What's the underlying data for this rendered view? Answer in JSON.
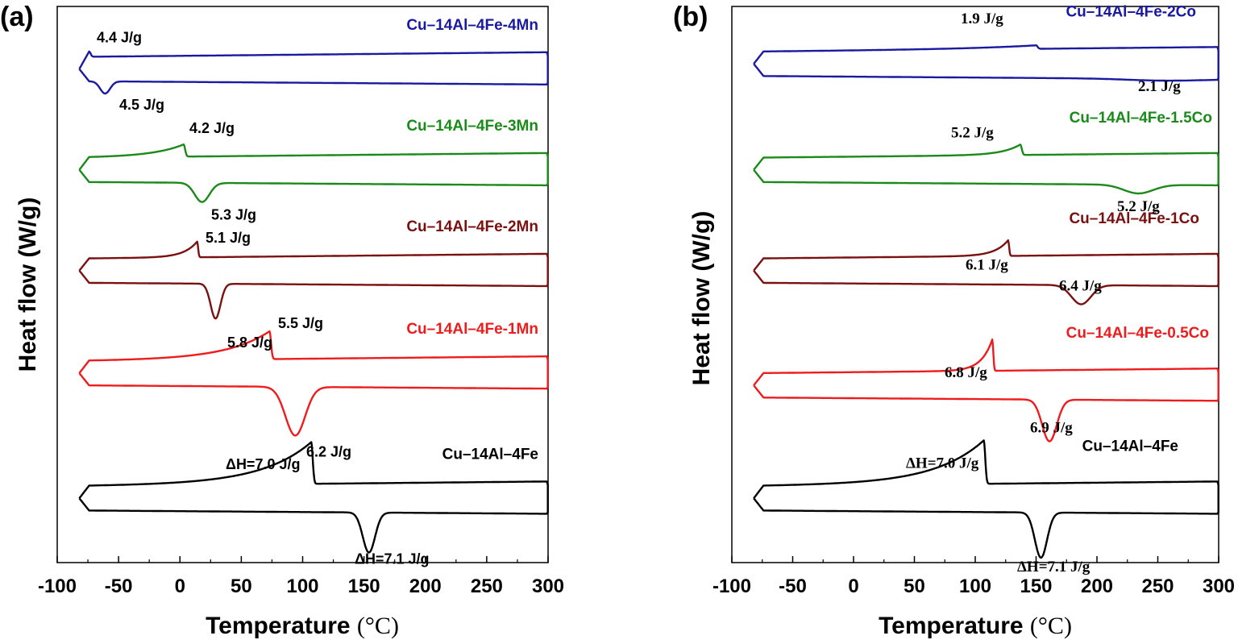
{
  "chart_data": [
    {
      "type": "line",
      "panel_label": "(a)",
      "xlabel": "Temperature",
      "xunit": "°C",
      "ylabel": "Heat flow (W/g)",
      "xlim": [
        -100,
        300
      ],
      "xticks": [
        "-100",
        "-50",
        "0",
        "50",
        "100",
        "150",
        "200",
        "250",
        "300"
      ],
      "ylim": [
        0,
        16
      ],
      "grid": false,
      "annotation_font": "sans",
      "series": [
        {
          "name": "Cu–14Al–4Fe-4Mn",
          "color": "#1a1aa0",
          "offset": 14.2,
          "heat_peak_T": -74,
          "heat_peak_h": 0.15,
          "heat_wid": 3,
          "cool_peak_T": -61,
          "cool_peak_d": 0.35,
          "cool_wid": 4,
          "heat_enthalpy": "4.4 J/g",
          "cool_enthalpy": "4.5 J/g"
        },
        {
          "name": "Cu–14Al–4Fe-3Mn",
          "color": "#1a8a1a",
          "offset": 11.3,
          "heat_peak_T": 3,
          "heat_peak_h": 0.35,
          "heat_wid": 25,
          "cool_peak_T": 18,
          "cool_peak_d": 0.55,
          "cool_wid": 6,
          "heat_enthalpy": "4.2 J/g",
          "cool_enthalpy": "5.3 J/g"
        },
        {
          "name": "Cu–14Al–4Fe-2Mn",
          "color": "#7a1010",
          "offset": 8.4,
          "heat_peak_T": 14,
          "heat_peak_h": 0.45,
          "heat_wid": 12,
          "cool_peak_T": 29,
          "cool_peak_d": 1.0,
          "cool_wid": 4,
          "heat_enthalpy": "5.1 J/g",
          "cool_enthalpy": "5.8 J/g"
        },
        {
          "name": "Cu–14Al–4Fe-1Mn",
          "color": "#ee1c1c",
          "offset": 5.45,
          "heat_peak_T": 73,
          "heat_peak_h": 0.8,
          "heat_wid": 35,
          "cool_peak_T": 94,
          "cool_peak_d": 1.4,
          "cool_wid": 8,
          "heat_enthalpy": "5.5 J/g",
          "cool_enthalpy": "6.2 J/g"
        },
        {
          "name": "Cu–14Al–4Fe",
          "color": "#000000",
          "offset": 1.85,
          "heat_peak_T": 107,
          "heat_peak_h": 1.2,
          "heat_wid": 40,
          "cool_peak_T": 154,
          "cool_peak_d": 1.15,
          "cool_wid": 5,
          "heat_enthalpy": "ΔH=7.0 J/g",
          "cool_enthalpy": "ΔH=7.1 J/g"
        }
      ]
    },
    {
      "type": "line",
      "panel_label": "(b)",
      "xlabel": "Temperature",
      "xunit": "°C",
      "ylabel": "Heat flow (W/g)",
      "xlim": [
        -100,
        300
      ],
      "xticks": [
        "-100",
        "-50",
        "0",
        "50",
        "100",
        "150",
        "200",
        "250",
        "300"
      ],
      "ylim": [
        0,
        16
      ],
      "grid": false,
      "annotation_font": "serif",
      "series": [
        {
          "name": "Cu–14Al–4Fe-2Co",
          "color": "#1a1aa0",
          "offset": 14.35,
          "heat_peak_T": 150,
          "heat_peak_h": 0.1,
          "heat_wid": 60,
          "cool_peak_T": 255,
          "cool_peak_d": 0.05,
          "cool_wid": 30,
          "heat_enthalpy": "1.9 J/g",
          "cool_enthalpy": "2.1 J/g"
        },
        {
          "name": "Cu–14Al–4Fe-1.5Co",
          "color": "#1a8a1a",
          "offset": 11.3,
          "heat_peak_T": 137,
          "heat_peak_h": 0.3,
          "heat_wid": 15,
          "cool_peak_T": 234,
          "cool_peak_d": 0.25,
          "cool_wid": 12,
          "heat_enthalpy": "5.2 J/g",
          "cool_enthalpy": "5.2 J/g"
        },
        {
          "name": "Cu–14Al–4Fe-1Co",
          "color": "#7a1010",
          "offset": 8.4,
          "heat_peak_T": 127,
          "heat_peak_h": 0.45,
          "heat_wid": 12,
          "cool_peak_T": 187,
          "cool_peak_d": 0.55,
          "cool_wid": 8,
          "heat_enthalpy": "6.1 J/g",
          "cool_enthalpy": "6.4 J/g"
        },
        {
          "name": "Cu–14Al–4Fe-0.5Co",
          "color": "#ee1c1c",
          "offset": 5.1,
          "heat_peak_T": 114,
          "heat_peak_h": 0.9,
          "heat_wid": 10,
          "cool_peak_T": 161,
          "cool_peak_d": 1.2,
          "cool_wid": 6,
          "heat_enthalpy": "6.8 J/g",
          "cool_enthalpy": "6.9 J/g"
        },
        {
          "name": "Cu–14Al–4Fe",
          "color": "#000000",
          "offset": 1.85,
          "heat_peak_T": 107,
          "heat_peak_h": 1.25,
          "heat_wid": 40,
          "cool_peak_T": 154,
          "cool_peak_d": 1.3,
          "cool_wid": 5,
          "heat_enthalpy": "ΔH=7.0 J/g",
          "cool_enthalpy": "ΔH=7.1 J/g"
        }
      ]
    }
  ]
}
